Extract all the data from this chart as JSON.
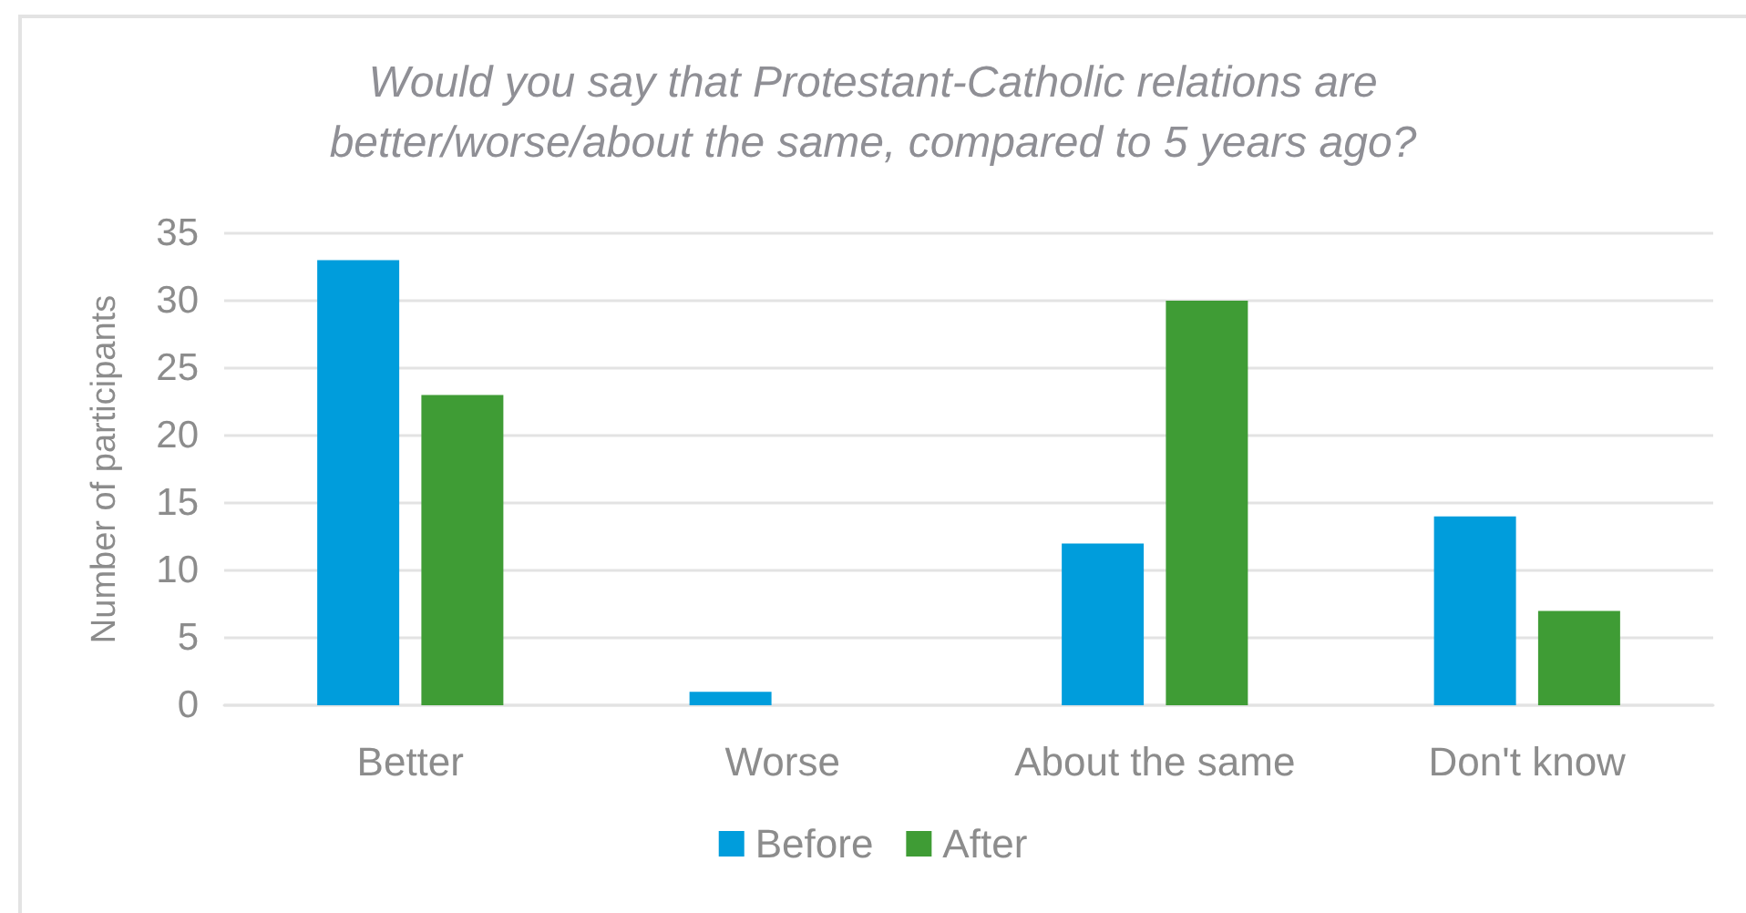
{
  "chart_data": {
    "type": "bar",
    "title": "Would you say that Protestant-Catholic relations are\nbetter/worse/about the same, compared to 5 years ago?",
    "ylabel": "Number of participants",
    "categories": [
      "Better",
      "Worse",
      "About the same",
      "Don't know"
    ],
    "series": [
      {
        "name": "Before",
        "color": "#009ddc",
        "values": [
          33,
          1,
          12,
          14
        ]
      },
      {
        "name": "After",
        "color": "#3f9c35",
        "values": [
          23,
          0,
          30,
          7
        ]
      }
    ],
    "ylim": [
      0,
      35
    ],
    "yticks": [
      0,
      5,
      10,
      15,
      20,
      25,
      30,
      35
    ],
    "grid": "y",
    "legend": "bottom"
  }
}
